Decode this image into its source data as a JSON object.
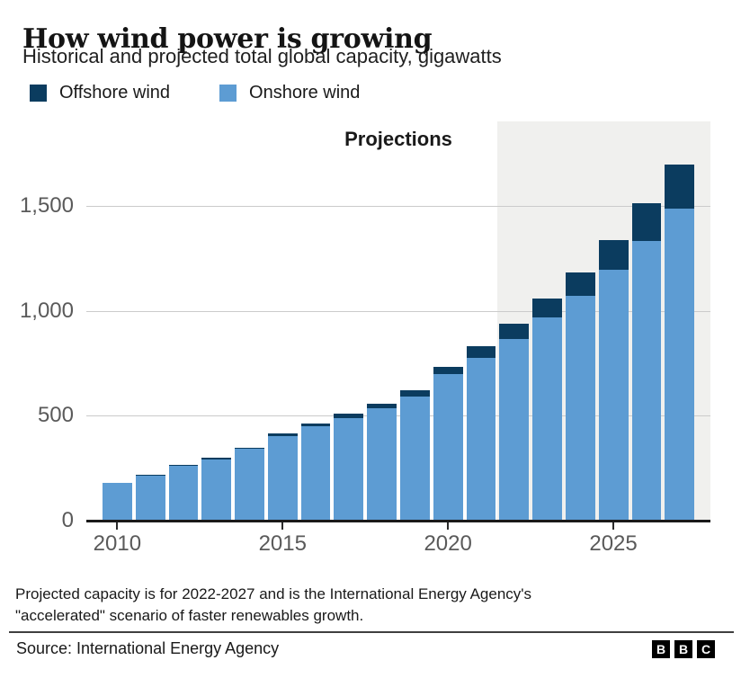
{
  "header": {
    "title": "How wind power is growing",
    "subtitle": "Historical and projected total global capacity, gigawatts"
  },
  "legend": [
    {
      "label": "Offshore wind",
      "color": "#0b3c5f"
    },
    {
      "label": "Onshore wind",
      "color": "#5d9cd3"
    }
  ],
  "chart_data": {
    "type": "bar",
    "stacked": true,
    "title": "How wind power is growing",
    "subtitle": "Historical and projected total global capacity, gigawatts",
    "unit": "gigawatts",
    "x": [
      2010,
      2011,
      2012,
      2013,
      2014,
      2015,
      2016,
      2017,
      2018,
      2019,
      2020,
      2021,
      2022,
      2023,
      2024,
      2025,
      2026,
      2027
    ],
    "series": [
      {
        "name": "Offshore wind",
        "color": "#0b3c5f",
        "values": [
          3,
          4,
          5,
          7,
          8,
          12,
          14,
          19,
          23,
          28,
          34,
          54,
          72,
          88,
          114,
          140,
          180,
          212
        ]
      },
      {
        "name": "Onshore wind",
        "color": "#5d9cd3",
        "values": [
          178,
          215,
          260,
          293,
          341,
          403,
          450,
          489,
          535,
          593,
          698,
          775,
          865,
          970,
          1070,
          1195,
          1330,
          1486
        ]
      }
    ],
    "totals": [
      181,
      219,
      265,
      300,
      349,
      415,
      464,
      508,
      558,
      621,
      732,
      829,
      937,
      1058,
      1184,
      1335,
      1510,
      1698
    ],
    "ylim": [
      0,
      1906
    ],
    "y_ticks": [
      {
        "value": 0,
        "label": "0"
      },
      {
        "value": 500,
        "label": "500"
      },
      {
        "value": 1000,
        "label": "1,000"
      },
      {
        "value": 1500,
        "label": "1,500"
      }
    ],
    "x_ticks": [
      2010,
      2015,
      2020,
      2025
    ],
    "grid": true,
    "projection_label": "Projections",
    "projection_start_year": 2022,
    "projection_band_color": "#f0f0ee",
    "legend_position": "top"
  },
  "footer": {
    "note_line1": "Projected capacity is for 2022-2027 and is the International Energy Agency's",
    "note_line2": "\"accelerated\" scenario of faster renewables growth.",
    "source": "Source: International Energy Agency",
    "logo_letters": [
      "B",
      "B",
      "C"
    ]
  }
}
